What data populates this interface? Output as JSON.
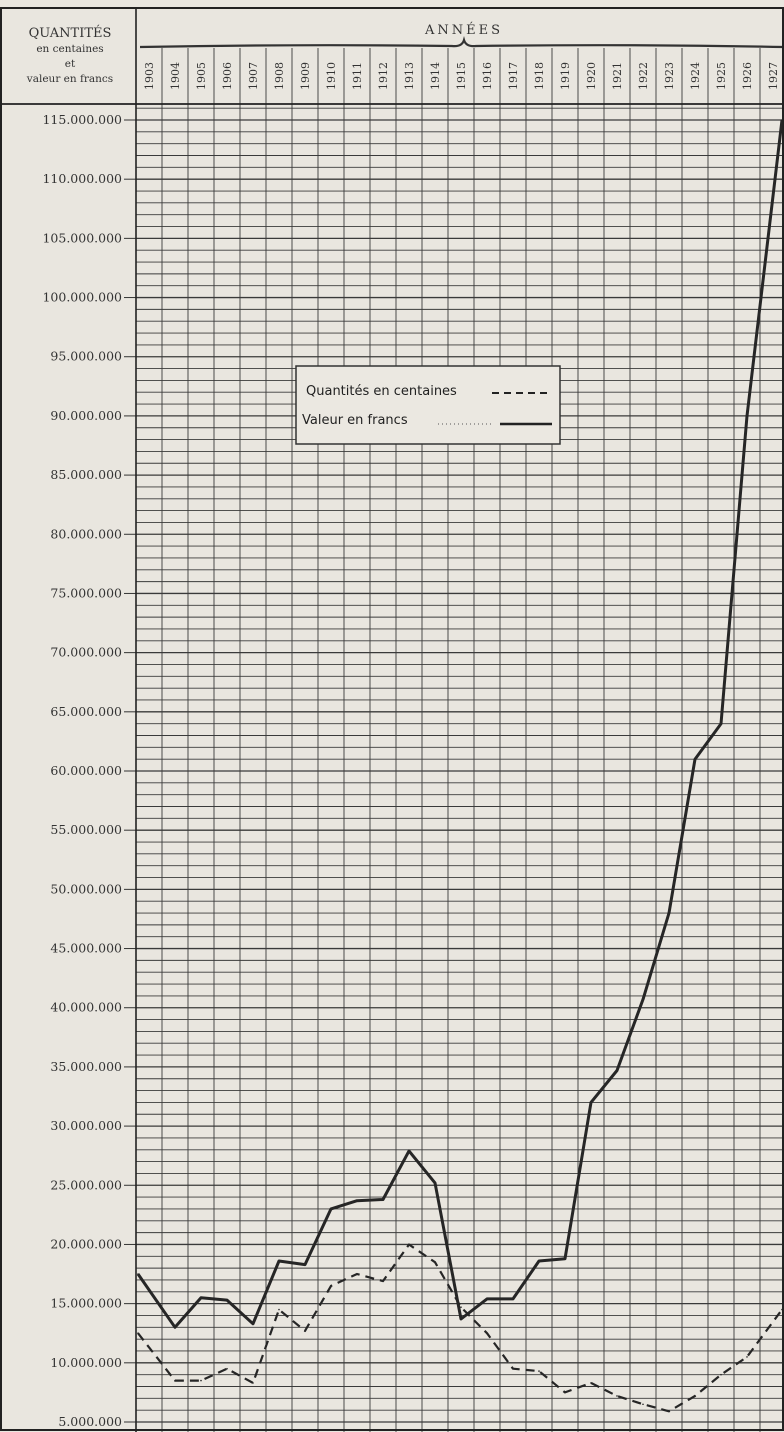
{
  "chart_data": {
    "type": "line",
    "corner_label": {
      "line1": "QUANTITÉS",
      "line2": "en centaines",
      "line3": "et",
      "line4": "valeur en francs"
    },
    "x_header": "ANNÉES",
    "x": [
      1903,
      1904,
      1905,
      1906,
      1907,
      1908,
      1909,
      1910,
      1911,
      1912,
      1913,
      1914,
      1915,
      1916,
      1917,
      1918,
      1919,
      1920,
      1921,
      1922,
      1923,
      1924,
      1925,
      1926,
      1927
    ],
    "y_ticks": [
      115000000,
      110000000,
      105000000,
      100000000,
      95000000,
      90000000,
      85000000,
      80000000,
      75000000,
      70000000,
      65000000,
      60000000,
      55000000,
      50000000,
      45000000,
      40000000,
      35000000,
      30000000,
      25000000,
      20000000,
      15000000,
      10000000,
      5000000
    ],
    "y_tick_labels": [
      "115.000.000",
      "110.000.000",
      "105.000.000",
      "100.000.000",
      "95.000.000",
      "90.000.000",
      "85.000.000",
      "80.000.000",
      "75.000.000",
      "70.000.000",
      "65.000.000",
      "60.000.000",
      "55.000.000",
      "50.000.000",
      "45.000.000",
      "40.000.000",
      "35.000.000",
      "30.000.000",
      "25.000.000",
      "20.000.000",
      "15.000.000",
      "10.000.000",
      "5.000.000"
    ],
    "ylim": [
      4000000,
      116000000
    ],
    "grid": true,
    "legend_position": "upper-middle",
    "series": [
      {
        "name": "Quantités en centaines",
        "style": "dashed",
        "values": [
          12500000,
          8500000,
          8500000,
          9500000,
          8300000,
          14500000,
          12700000,
          16500000,
          17500000,
          16900000,
          20000000,
          18500000,
          14700000,
          12500000,
          9500000,
          9300000,
          7500000,
          8300000,
          7200000,
          6500000,
          5900000,
          7200000,
          9000000,
          10500000,
          14500000
        ]
      },
      {
        "name": "Valeur en francs",
        "style": "solid",
        "values": [
          17500000,
          13000000,
          15500000,
          15300000,
          13300000,
          18600000,
          18300000,
          23000000,
          23700000,
          23800000,
          27900000,
          25200000,
          13700000,
          15400000,
          15400000,
          18600000,
          18800000,
          32000000,
          34700000,
          40700000,
          48000000,
          61000000,
          64000000,
          90000000,
          115000000
        ]
      }
    ],
    "legend": {
      "quantities_label": "Quantités en centaines",
      "value_label": "Valeur en francs"
    }
  }
}
